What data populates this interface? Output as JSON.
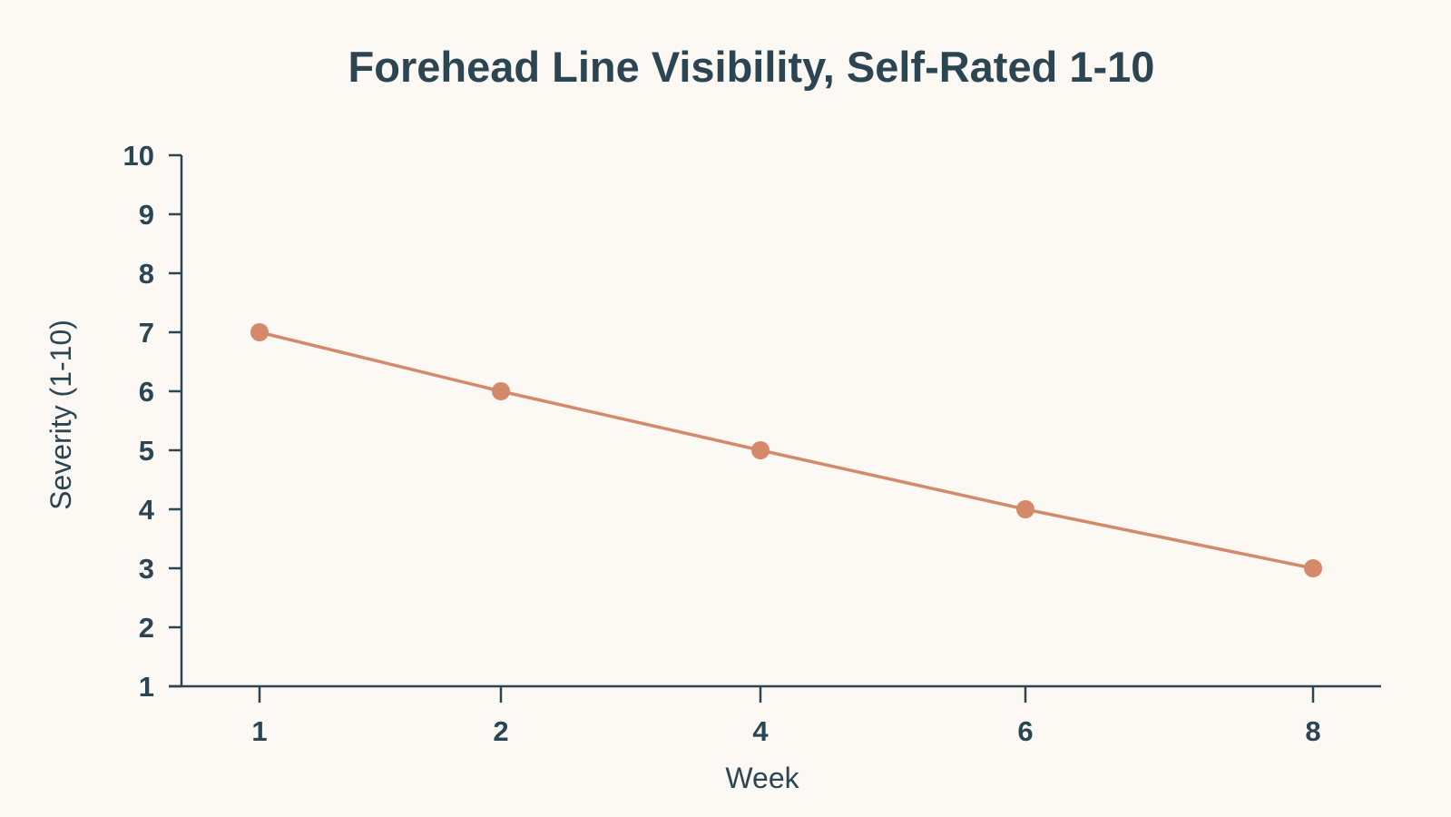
{
  "chart_data": {
    "type": "line",
    "title": "Forehead Line Visibility, Self-Rated 1-10",
    "xlabel": "Week",
    "ylabel": "Severity (1-10)",
    "x": [
      1,
      2,
      4,
      6,
      8
    ],
    "x_tick_labels": [
      "1",
      "2",
      "4",
      "6",
      "8"
    ],
    "y_ticks": [
      1,
      2,
      3,
      4,
      5,
      6,
      7,
      8,
      9,
      10
    ],
    "y_tick_labels": [
      "1",
      "2",
      "3",
      "4",
      "5",
      "6",
      "7",
      "8",
      "9",
      "10"
    ],
    "ylim": [
      1,
      10
    ],
    "grid": false,
    "legend": "none",
    "series": [
      {
        "values": [
          7,
          6,
          5,
          4,
          3
        ],
        "color": "#d4896a"
      }
    ],
    "colors": {
      "text": "#2c4552",
      "axis": "#2c4552",
      "background": "#fcf8f3"
    }
  }
}
